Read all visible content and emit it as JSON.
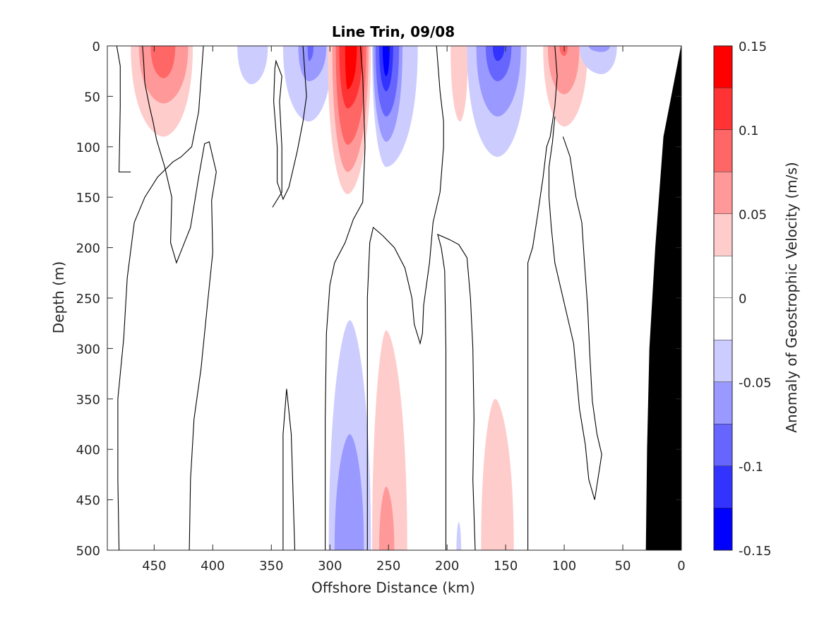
{
  "chart_data": {
    "type": "heatmap",
    "subtype": "filled contour section",
    "title": "Line Trin, 09/08",
    "xlabel": "Offshore Distance (km)",
    "ylabel": "Depth (m)",
    "xlim": [
      490,
      0
    ],
    "ylim": [
      0,
      500
    ],
    "x_reversed": true,
    "y_reversed": true,
    "x_ticks": [
      450,
      400,
      350,
      300,
      250,
      200,
      150,
      100,
      50,
      0
    ],
    "y_ticks": [
      0,
      50,
      100,
      150,
      200,
      250,
      300,
      350,
      400,
      450,
      500
    ],
    "colorbar": {
      "label": "Anomaly of Geostrophic Velocity (m/s)",
      "range": [
        -0.15,
        0.15
      ],
      "tick_values": [
        0.15,
        0.1,
        0.05,
        0,
        -0.05,
        -0.1,
        -0.15
      ],
      "tick_labels": [
        "0.15",
        "0.1",
        "0.05",
        "0",
        "-0.05",
        "-0.1",
        "-0.15"
      ],
      "levels": [
        {
          "from": 0.125,
          "to": 0.15,
          "color": "#ff0000"
        },
        {
          "from": 0.1,
          "to": 0.125,
          "color": "#ff3333"
        },
        {
          "from": 0.075,
          "to": 0.1,
          "color": "#ff6666"
        },
        {
          "from": 0.05,
          "to": 0.075,
          "color": "#ff9999"
        },
        {
          "from": 0.025,
          "to": 0.05,
          "color": "#ffcccc"
        },
        {
          "from": 0.0,
          "to": 0.025,
          "color": "#ffffff"
        },
        {
          "from": -0.025,
          "to": 0.0,
          "color": "#ffffff"
        },
        {
          "from": -0.05,
          "to": -0.025,
          "color": "#ccccff"
        },
        {
          "from": -0.075,
          "to": -0.05,
          "color": "#9999ff"
        },
        {
          "from": -0.1,
          "to": -0.075,
          "color": "#6666ff"
        },
        {
          "from": -0.125,
          "to": -0.1,
          "color": "#3333ff"
        },
        {
          "from": -0.15,
          "to": -0.125,
          "color": "#0000ff"
        }
      ]
    },
    "cores": [
      {
        "x": 442,
        "depth": 10,
        "peak": 0.1,
        "color": "#ff6666",
        "extent": [
          {
            "level": 0.025,
            "x0": 470,
            "x1": 417,
            "depth_max": 90
          },
          {
            "level": 0.05,
            "x0": 463,
            "x1": 421,
            "depth_max": 57
          },
          {
            "level": 0.075,
            "x0": 453,
            "x1": 432,
            "depth_max": 32
          }
        ]
      },
      {
        "x": 367,
        "depth": 0,
        "peak": -0.03,
        "extent": [
          {
            "level": -0.025,
            "x0": 379,
            "x1": 353,
            "depth_max": 38
          }
        ]
      },
      {
        "x": 318,
        "depth": 10,
        "peak": -0.09,
        "extent": [
          {
            "level": -0.025,
            "x0": 340,
            "x1": 298,
            "depth_max": 75
          },
          {
            "level": -0.05,
            "x0": 327,
            "x1": 303,
            "depth_max": 35
          },
          {
            "level": -0.075,
            "x0": 319,
            "x1": 314,
            "depth_max": 15
          }
        ]
      },
      {
        "x": 285,
        "depth": 20,
        "peak": 0.14,
        "extent": [
          {
            "level": 0.025,
            "x0": 302,
            "x1": 265,
            "depth_max": 147
          },
          {
            "level": 0.05,
            "x0": 298,
            "x1": 267,
            "depth_max": 125
          },
          {
            "level": 0.075,
            "x0": 295,
            "x1": 269,
            "depth_max": 98
          },
          {
            "level": 0.1,
            "x0": 292,
            "x1": 272,
            "depth_max": 62
          },
          {
            "level": 0.125,
            "x0": 287,
            "x1": 277,
            "depth_max": 43
          }
        ]
      },
      {
        "x": 252,
        "depth": 20,
        "peak": -0.14,
        "extent": [
          {
            "level": -0.025,
            "x0": 264,
            "x1": 225,
            "depth_max": 120
          },
          {
            "level": -0.05,
            "x0": 263,
            "x1": 238,
            "depth_max": 95
          },
          {
            "level": -0.075,
            "x0": 261,
            "x1": 241,
            "depth_max": 70
          },
          {
            "level": -0.1,
            "x0": 258,
            "x1": 246,
            "depth_max": 45
          },
          {
            "level": -0.125,
            "x0": 255,
            "x1": 249,
            "depth_max": 30
          }
        ]
      },
      {
        "x": 189,
        "depth": 20,
        "peak": 0.04,
        "extent": [
          {
            "level": 0.025,
            "x0": 197,
            "x1": 182,
            "depth_max": 75
          }
        ]
      },
      {
        "x": 157,
        "depth": 10,
        "peak": -0.11,
        "extent": [
          {
            "level": -0.025,
            "x0": 183,
            "x1": 132,
            "depth_max": 110
          },
          {
            "level": -0.05,
            "x0": 175,
            "x1": 137,
            "depth_max": 70
          },
          {
            "level": -0.075,
            "x0": 167,
            "x1": 145,
            "depth_max": 35
          },
          {
            "level": -0.1,
            "x0": 161,
            "x1": 151,
            "depth_max": 15
          }
        ]
      },
      {
        "x": 100,
        "depth": 10,
        "peak": 0.09,
        "extent": [
          {
            "level": 0.025,
            "x0": 118,
            "x1": 80,
            "depth_max": 80
          },
          {
            "level": 0.05,
            "x0": 114,
            "x1": 87,
            "depth_max": 48
          },
          {
            "level": 0.075,
            "x0": 104,
            "x1": 97,
            "depth_max": 10
          }
        ]
      },
      {
        "x": 68,
        "depth": 0,
        "peak": -0.06,
        "extent": [
          {
            "level": -0.025,
            "x0": 87,
            "x1": 55,
            "depth_max": 28
          },
          {
            "level": -0.05,
            "x0": 79,
            "x1": 61,
            "depth_max": 6
          }
        ]
      },
      {
        "x": 283,
        "depth": 460,
        "peak": -0.07,
        "extent": [
          {
            "level": -0.025,
            "x0": 301,
            "x1": 265,
            "depth_min": 272
          },
          {
            "level": -0.05,
            "x0": 296,
            "x1": 271,
            "depth_min": 385
          }
        ]
      },
      {
        "x": 252,
        "depth": 480,
        "peak": 0.07,
        "extent": [
          {
            "level": 0.025,
            "x0": 264,
            "x1": 234,
            "depth_min": 282
          },
          {
            "level": 0.05,
            "x0": 258,
            "x1": 245,
            "depth_min": 437
          }
        ]
      },
      {
        "x": 190,
        "depth": 490,
        "peak": -0.03,
        "extent": [
          {
            "level": -0.025,
            "x0": 192,
            "x1": 188,
            "depth_min": 472
          }
        ]
      },
      {
        "x": 159,
        "depth": 450,
        "peak": 0.04,
        "extent": [
          {
            "level": 0.025,
            "x0": 171,
            "x1": 143,
            "depth_min": 350
          }
        ]
      }
    ],
    "zero_contours": [
      [
        [
          482,
          0
        ],
        [
          479,
          20
        ],
        [
          479,
          60
        ],
        [
          480,
          125
        ],
        [
          470,
          125
        ]
      ],
      [
        [
          452,
          0
        ],
        [
          450,
          0
        ]
      ],
      [
        [
          480,
          500
        ],
        [
          481,
          430
        ],
        [
          481,
          350
        ],
        [
          476,
          290
        ],
        [
          473,
          230
        ],
        [
          467,
          175
        ],
        [
          458,
          150
        ],
        [
          447,
          130
        ],
        [
          434,
          115
        ],
        [
          427,
          110
        ],
        [
          418,
          100
        ],
        [
          412,
          65
        ],
        [
          408,
          0
        ]
      ],
      [
        [
          420,
          500
        ],
        [
          419,
          430
        ],
        [
          416,
          370
        ],
        [
          410,
          320
        ],
        [
          404,
          250
        ],
        [
          400,
          205
        ],
        [
          401,
          153
        ],
        [
          397,
          125
        ],
        [
          403,
          95
        ],
        [
          407,
          97
        ],
        [
          412,
          130
        ],
        [
          419,
          180
        ],
        [
          431,
          215
        ],
        [
          436,
          195
        ],
        [
          435,
          150
        ],
        [
          441,
          120
        ],
        [
          448,
          93
        ],
        [
          451,
          75
        ],
        [
          454,
          60
        ],
        [
          458,
          37
        ],
        [
          459,
          15
        ],
        [
          460,
          0
        ]
      ],
      [
        [
          340,
          500
        ],
        [
          340,
          385
        ],
        [
          337,
          340
        ],
        [
          333,
          385
        ],
        [
          330,
          500
        ]
      ],
      [
        [
          323,
          0
        ],
        [
          320,
          50
        ],
        [
          323,
          75
        ],
        [
          328,
          105
        ],
        [
          335,
          140
        ],
        [
          340,
          152
        ],
        [
          345,
          135
        ],
        [
          345,
          100
        ],
        [
          348,
          55
        ],
        [
          347,
          22
        ],
        [
          346,
          15
        ],
        [
          341,
          30
        ],
        [
          343,
          55
        ],
        [
          341,
          100
        ],
        [
          341,
          145
        ],
        [
          349,
          160
        ]
      ],
      [
        [
          304,
          500
        ],
        [
          304,
          370
        ],
        [
          303,
          285
        ],
        [
          300,
          237
        ],
        [
          296,
          215
        ],
        [
          287,
          195
        ],
        [
          280,
          172
        ],
        [
          272,
          155
        ],
        [
          270,
          100
        ],
        [
          272,
          30
        ],
        [
          274,
          0
        ]
      ],
      [
        [
          268,
          500
        ],
        [
          268,
          370
        ],
        [
          268,
          250
        ],
        [
          266,
          195
        ],
        [
          263,
          180
        ],
        [
          255,
          188
        ],
        [
          245,
          200
        ],
        [
          236,
          220
        ],
        [
          230,
          250
        ],
        [
          228,
          276
        ],
        [
          223,
          295
        ],
        [
          221,
          285
        ],
        [
          220,
          257
        ],
        [
          215,
          215
        ],
        [
          212,
          175
        ],
        [
          206,
          145
        ],
        [
          203,
          100
        ],
        [
          203,
          75
        ],
        [
          206,
          45
        ],
        [
          209,
          0
        ]
      ],
      [
        [
          201,
          500
        ],
        [
          201,
          400
        ],
        [
          201,
          300
        ],
        [
          202,
          223
        ],
        [
          205,
          200
        ],
        [
          208,
          187
        ],
        [
          198,
          192
        ],
        [
          190,
          197
        ],
        [
          183,
          210
        ],
        [
          180,
          250
        ],
        [
          178,
          300
        ],
        [
          177,
          370
        ],
        [
          178,
          430
        ],
        [
          176,
          500
        ]
      ],
      [
        [
          131,
          500
        ],
        [
          131,
          350
        ],
        [
          131,
          233
        ],
        [
          131,
          215
        ],
        [
          127,
          200
        ],
        [
          123,
          170
        ],
        [
          118,
          130
        ],
        [
          115,
          100
        ],
        [
          112,
          90
        ],
        [
          108,
          60
        ],
        [
          106,
          30
        ],
        [
          108,
          0
        ]
      ],
      [
        [
          101,
          90
        ],
        [
          95,
          110
        ],
        [
          90,
          150
        ],
        [
          85,
          175
        ],
        [
          83,
          210
        ],
        [
          80,
          260
        ],
        [
          78,
          310
        ],
        [
          76,
          352
        ],
        [
          72,
          385
        ],
        [
          68,
          405
        ],
        [
          70,
          420
        ],
        [
          74,
          450
        ],
        [
          79,
          430
        ],
        [
          82,
          395
        ],
        [
          87,
          360
        ],
        [
          92,
          295
        ],
        [
          103,
          240
        ],
        [
          108,
          215
        ],
        [
          111,
          180
        ],
        [
          113,
          150
        ],
        [
          113,
          120
        ],
        [
          110,
          95
        ],
        [
          108,
          70
        ]
      ]
    ],
    "topography_x_at_depth": [
      [
        0,
        0
      ],
      [
        10,
        60
      ],
      [
        15,
        90
      ],
      [
        22,
        200
      ],
      [
        27,
        300
      ],
      [
        29,
        400
      ],
      [
        30,
        500
      ]
    ]
  }
}
